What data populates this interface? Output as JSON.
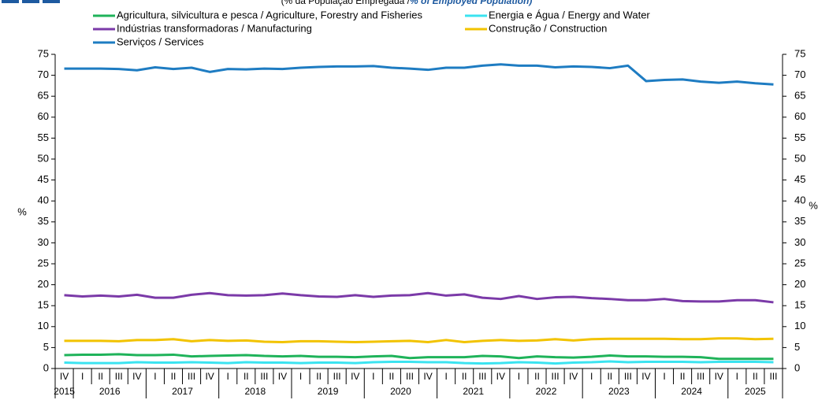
{
  "chart_data": {
    "type": "line",
    "subtitle_pt": "(% da População Empregada / ",
    "subtitle_en": "% of Employed Population)",
    "ylabel": "%",
    "y2label": "%",
    "categories": [
      "IV",
      "I",
      "II",
      "III",
      "IV",
      "I",
      "II",
      "III",
      "IV",
      "I",
      "II",
      "III",
      "IV",
      "I",
      "II",
      "III",
      "IV",
      "I",
      "II",
      "III",
      "IV",
      "I",
      "II",
      "III",
      "IV",
      "I",
      "II",
      "III",
      "IV",
      "I",
      "II",
      "III",
      "IV",
      "I",
      "II",
      "III",
      "IV",
      "I",
      "II",
      "III"
    ],
    "years": [
      "2015",
      "2016",
      "2016",
      "2016",
      "2016",
      "2017",
      "2017",
      "2017",
      "2017",
      "2018",
      "2018",
      "2018",
      "2018",
      "2019",
      "2019",
      "2019",
      "2019",
      "2020",
      "2020",
      "2020",
      "2020",
      "2021",
      "2021",
      "2021",
      "2021",
      "2022",
      "2022",
      "2022",
      "2022",
      "2023",
      "2023",
      "2023",
      "2023",
      "2024",
      "2024",
      "2024",
      "2024",
      "2025",
      "2025",
      "2025"
    ],
    "ylim": [
      0,
      75
    ],
    "yticks": [
      0,
      5,
      10,
      15,
      20,
      25,
      30,
      35,
      40,
      45,
      50,
      55,
      60,
      65,
      70,
      75
    ],
    "y2lim": [
      0,
      75
    ],
    "y2ticks": [
      0,
      5,
      10,
      15,
      20,
      25,
      30,
      35,
      40,
      45,
      50,
      55,
      60,
      65,
      70,
      75
    ],
    "series": [
      {
        "name": "Agricultura, silvicultura e pesca / Agriculture, Forestry and Fisheries",
        "color": "#1fb35a",
        "values": [
          3.2,
          3.3,
          3.3,
          3.4,
          3.2,
          3.2,
          3.3,
          2.9,
          3.0,
          3.1,
          3.2,
          3.0,
          2.9,
          3.0,
          2.8,
          2.8,
          2.7,
          2.9,
          3.0,
          2.5,
          2.7,
          2.7,
          2.7,
          3.0,
          2.9,
          2.5,
          2.9,
          2.7,
          2.6,
          2.8,
          3.1,
          2.9,
          2.9,
          2.8,
          2.8,
          2.7,
          2.3,
          2.3,
          2.3,
          2.3
        ]
      },
      {
        "name": "Energia e Água / Energy and Water",
        "color": "#3be3f0",
        "values": [
          1.4,
          1.3,
          1.3,
          1.3,
          1.5,
          1.4,
          1.4,
          1.5,
          1.4,
          1.3,
          1.5,
          1.4,
          1.4,
          1.3,
          1.4,
          1.4,
          1.3,
          1.5,
          1.6,
          1.6,
          1.5,
          1.5,
          1.3,
          1.2,
          1.3,
          1.5,
          1.4,
          1.2,
          1.4,
          1.5,
          1.7,
          1.5,
          1.6,
          1.6,
          1.6,
          1.5,
          1.6,
          1.6,
          1.6,
          1.5
        ]
      },
      {
        "name": "Indústrias transformadoras / Manufacturing",
        "color": "#7b3aa8",
        "values": [
          17.5,
          17.2,
          17.4,
          17.2,
          17.6,
          16.9,
          16.9,
          17.6,
          18.0,
          17.5,
          17.4,
          17.5,
          17.9,
          17.5,
          17.2,
          17.1,
          17.5,
          17.1,
          17.4,
          17.5,
          18.0,
          17.4,
          17.7,
          16.9,
          16.6,
          17.3,
          16.6,
          17.0,
          17.1,
          16.8,
          16.6,
          16.3,
          16.3,
          16.6,
          16.1,
          16.0,
          16.0,
          16.3,
          16.3,
          15.8
        ]
      },
      {
        "name": "Construção / Construction",
        "color": "#f2c300",
        "values": [
          6.6,
          6.6,
          6.6,
          6.5,
          6.8,
          6.8,
          7.0,
          6.5,
          6.8,
          6.6,
          6.7,
          6.4,
          6.3,
          6.5,
          6.5,
          6.4,
          6.3,
          6.4,
          6.5,
          6.6,
          6.3,
          6.8,
          6.3,
          6.6,
          6.8,
          6.6,
          6.7,
          7.0,
          6.7,
          7.0,
          7.1,
          7.1,
          7.1,
          7.1,
          7.0,
          7.0,
          7.2,
          7.2,
          7.0,
          7.1
        ]
      },
      {
        "name": "Serviços / Services",
        "color": "#1e7cc2",
        "values": [
          71.6,
          71.6,
          71.6,
          71.5,
          71.2,
          71.9,
          71.5,
          71.8,
          70.8,
          71.5,
          71.4,
          71.6,
          71.5,
          71.8,
          72.0,
          72.1,
          72.1,
          72.2,
          71.8,
          71.6,
          71.3,
          71.8,
          71.8,
          72.3,
          72.6,
          72.3,
          72.3,
          71.9,
          72.1,
          72.0,
          71.7,
          72.3,
          68.6,
          68.9,
          69.0,
          68.5,
          68.2,
          68.5,
          68.1,
          67.8
        ]
      }
    ]
  }
}
